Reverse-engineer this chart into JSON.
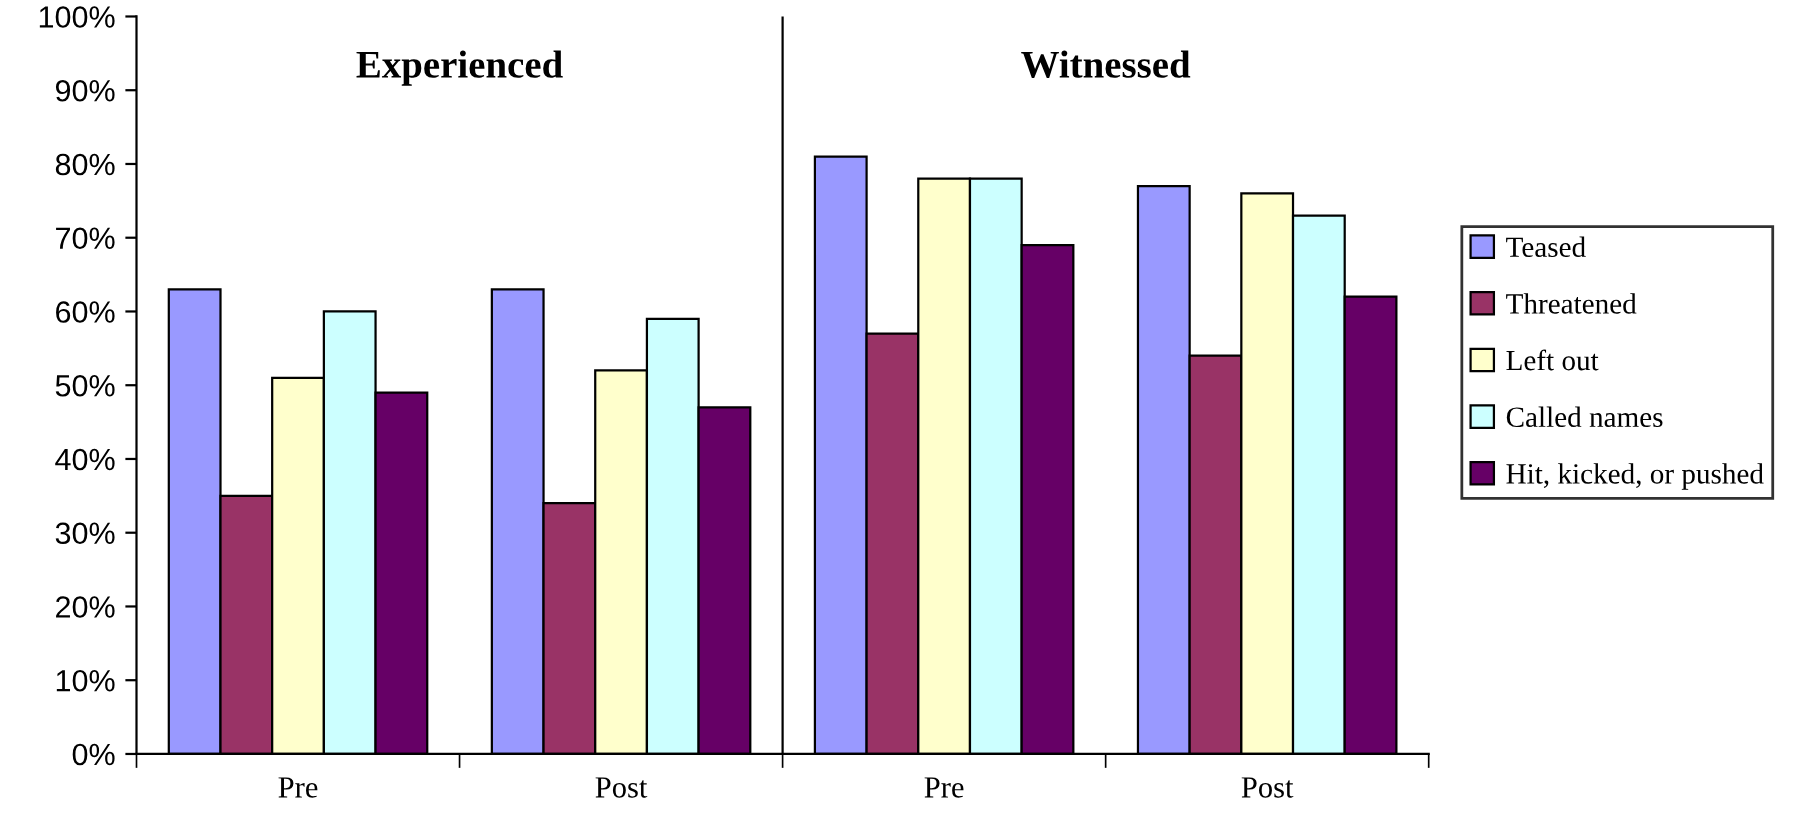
{
  "chart_data": {
    "type": "bar",
    "categories": [
      "Pre",
      "Post",
      "Pre",
      "Post"
    ],
    "series": [
      {
        "name": "Teased",
        "color": "#9999ff",
        "values": [
          63,
          63,
          81,
          77
        ]
      },
      {
        "name": "Threatened",
        "color": "#993366",
        "values": [
          35,
          34,
          57,
          54
        ]
      },
      {
        "name": "Left out",
        "color": "#ffffcc",
        "values": [
          51,
          52,
          78,
          76
        ]
      },
      {
        "name": "Called names",
        "color": "#ccffff",
        "values": [
          60,
          59,
          78,
          73
        ]
      },
      {
        "name": "Hit, kicked, or pushed",
        "color": "#660066",
        "values": [
          49,
          47,
          69,
          62
        ]
      }
    ],
    "ylim": [
      0,
      100
    ],
    "yticks": [
      {
        "value": 0,
        "label": "0%"
      },
      {
        "value": 10,
        "label": "10%"
      },
      {
        "value": 20,
        "label": "20%"
      },
      {
        "value": 30,
        "label": "30%"
      },
      {
        "value": 40,
        "label": "40%"
      },
      {
        "value": 50,
        "label": "50%"
      },
      {
        "value": 60,
        "label": "60%"
      },
      {
        "value": 70,
        "label": "70%"
      },
      {
        "value": 80,
        "label": "80%"
      },
      {
        "value": 90,
        "label": "90%"
      },
      {
        "value": 100,
        "label": "100%"
      }
    ],
    "annotations": [
      "Experienced",
      "Witnessed"
    ],
    "grid": false,
    "legend": "right"
  }
}
